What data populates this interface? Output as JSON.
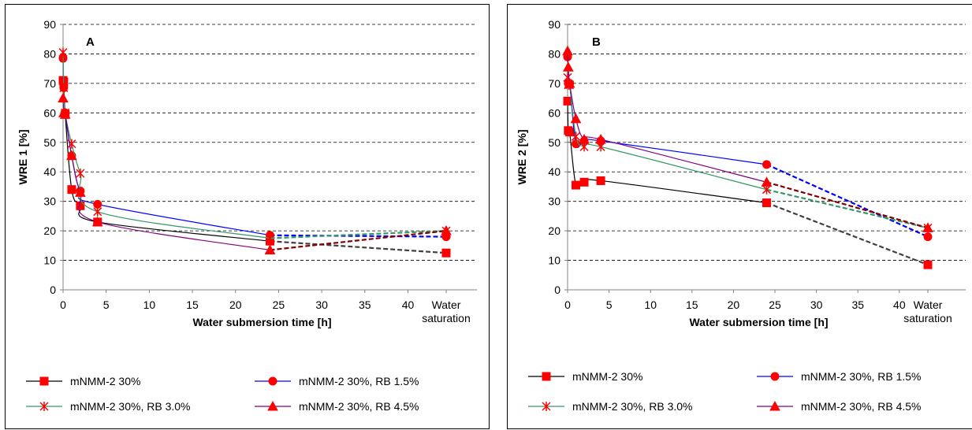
{
  "legend_labels": [
    "mNMM-2 30%",
    "mNMM-2 30%, RB 1.5%",
    "mNMM-2 30%, RB 3.0%",
    "mNMM-2 30%, RB 4.5%"
  ],
  "chart_data": [
    {
      "type": "line",
      "panel_label": "A",
      "title": "",
      "xlabel": "Water submersion time [h]",
      "ylabel": "WRE 1 [%]",
      "xlim": [
        0,
        48
      ],
      "ylim": [
        0,
        90
      ],
      "x_ticks": [
        "0",
        "5",
        "10",
        "15",
        "20",
        "25",
        "30",
        "35",
        "40"
      ],
      "x_extra_tick": [
        "Water",
        "saturation"
      ],
      "y_ticks": [
        "0",
        "10",
        "20",
        "30",
        "40",
        "50",
        "60",
        "70",
        "80",
        "90"
      ],
      "grid": "horizontal dashed",
      "legend_position": "bottom",
      "series": [
        {
          "name": "mNMM-2 30%",
          "color": "#000000",
          "marker": "square",
          "dash_color": "#404040",
          "x": [
            0,
            0.08,
            0.25,
            1,
            2,
            4,
            24
          ],
          "y": [
            71,
            70.5,
            59.5,
            34,
            28.5,
            23,
            16.5
          ],
          "saturation": 12.5
        },
        {
          "name": "mNMM-2 30%, RB 1.5%",
          "color": "#0000ff",
          "marker": "circle",
          "dash_color": "#0000ff",
          "x": [
            0,
            0.08,
            0.25,
            1,
            2,
            4,
            24
          ],
          "y": [
            78.5,
            68.5,
            60,
            45.5,
            33.5,
            29,
            18.5
          ],
          "saturation": 18
        },
        {
          "name": "mNMM-2 30%, RB 3.0%",
          "color": "#339966",
          "marker": "asterisk",
          "dash_color": "#339966",
          "x": [
            0,
            0.08,
            0.25,
            1,
            2,
            4,
            24
          ],
          "y": [
            80.5,
            68.5,
            60,
            49.5,
            39.5,
            26.5,
            17.5
          ],
          "saturation": 20
        },
        {
          "name": "mNMM-2 30%, RB 4.5%",
          "color": "#800080",
          "marker": "triangle",
          "dash_color": "#800000",
          "x": [
            0,
            0.08,
            0.25,
            1,
            2,
            4,
            24
          ],
          "y": [
            65,
            60,
            59.5,
            45.5,
            33,
            23,
            13.5
          ],
          "saturation": 20
        }
      ]
    },
    {
      "type": "line",
      "panel_label": "B",
      "title": "",
      "xlabel": "Water submersion time [h]",
      "ylabel": "WRE 2 [%]",
      "xlim": [
        0,
        48
      ],
      "ylim": [
        0,
        90
      ],
      "x_ticks": [
        "0",
        "5",
        "10",
        "15",
        "20",
        "25",
        "30",
        "35",
        "40"
      ],
      "x_extra_tick": [
        "Water",
        "saturation"
      ],
      "y_ticks": [
        "0",
        "10",
        "20",
        "30",
        "40",
        "50",
        "60",
        "70",
        "80",
        "90"
      ],
      "grid": "horizontal dashed",
      "legend_position": "bottom",
      "series": [
        {
          "name": "mNMM-2 30%",
          "color": "#000000",
          "marker": "square",
          "dash_color": "#404040",
          "x": [
            0,
            0.08,
            0.25,
            1,
            2,
            4,
            24
          ],
          "y": [
            64,
            54,
            53.5,
            35.5,
            36.5,
            37,
            29.5
          ],
          "saturation": 8.5
        },
        {
          "name": "mNMM-2 30%, RB 1.5%",
          "color": "#0000ff",
          "marker": "circle",
          "dash_color": "#0000ff",
          "x": [
            0,
            0.08,
            0.25,
            1,
            2,
            4,
            24
          ],
          "y": [
            79,
            70,
            70,
            49.5,
            50.5,
            50.5,
            42.5
          ],
          "saturation": 18
        },
        {
          "name": "mNMM-2 30%, RB 3.0%",
          "color": "#339966",
          "marker": "asterisk",
          "dash_color": "#339966",
          "x": [
            0,
            0.08,
            0.25,
            1,
            2,
            4,
            24
          ],
          "y": [
            72,
            69.5,
            69.5,
            52,
            48.5,
            48.5,
            34
          ],
          "saturation": 21
        },
        {
          "name": "mNMM-2 30%, RB 4.5%",
          "color": "#800080",
          "marker": "triangle",
          "dash_color": "#800000",
          "x": [
            0,
            0.08,
            0.25,
            1,
            2,
            4,
            24
          ],
          "y": [
            81,
            75.5,
            70,
            58,
            51,
            51,
            36.5
          ],
          "saturation": 21
        }
      ]
    }
  ]
}
